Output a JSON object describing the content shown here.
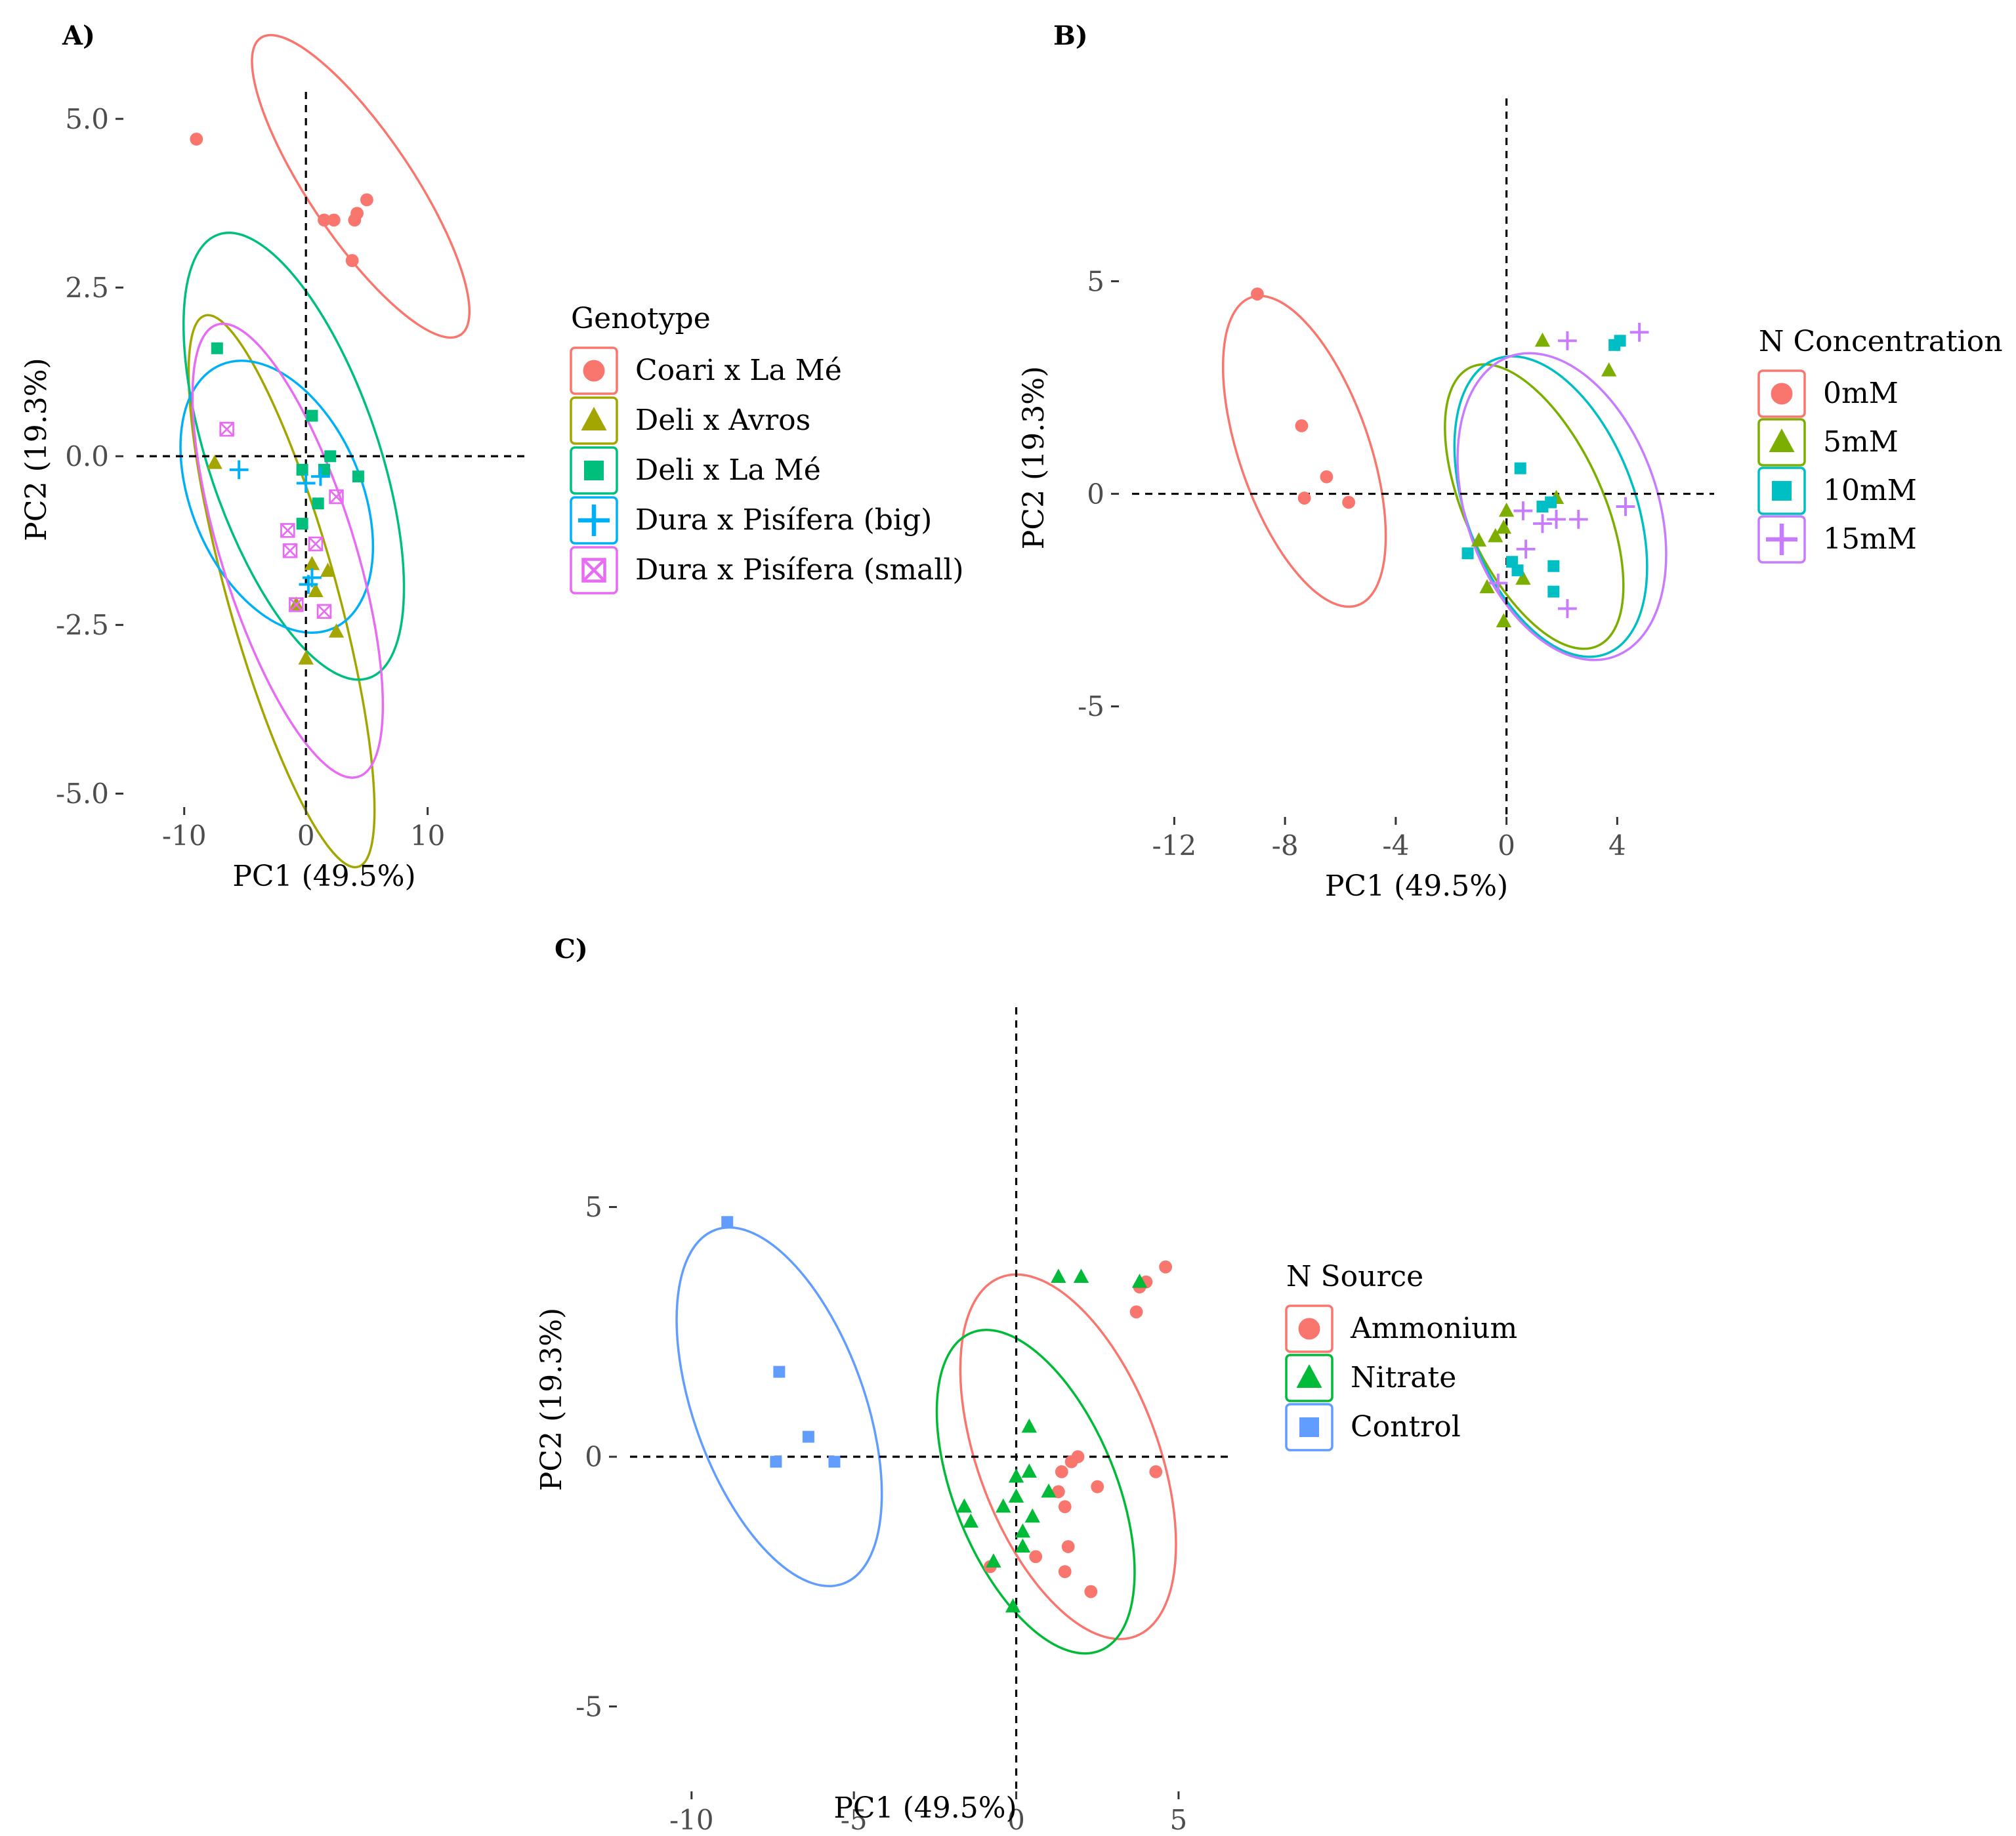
{
  "chart_data": [
    {
      "panel": "A)",
      "type": "scatter",
      "xlabel": "PC1 (49.5%)",
      "ylabel": "PC2 (19.3%)",
      "xlim": [
        -15,
        18
      ],
      "ylim": [
        -5.2,
        5.4
      ],
      "xticks": [
        -10,
        0,
        10
      ],
      "xtick_labels": [
        "-10",
        "0",
        "10"
      ],
      "yticks": [
        5,
        2.5,
        0,
        -2.5,
        -5
      ],
      "ytick_labels": [
        "5.0",
        "2.5",
        "0.0",
        "-2.5",
        "-5.0"
      ],
      "legend_title": "Genotype",
      "legend_position": "right",
      "series": [
        {
          "name": "Coari x La Mé",
          "shape": "circle",
          "color": "#F8766D",
          "points": [
            [
              -9,
              4.7
            ],
            [
              1.5,
              3.5
            ],
            [
              2.3,
              3.5
            ],
            [
              4,
              3.5
            ],
            [
              4.2,
              3.6
            ],
            [
              5,
              3.8
            ],
            [
              3.8,
              2.9
            ]
          ],
          "ellipse": {
            "cx": 4.5,
            "cy": 4.0,
            "rx": 17,
            "ry": 0.85,
            "angle": -15
          }
        },
        {
          "name": "Deli x Avros",
          "shape": "triangle",
          "color": "#A3A500",
          "points": [
            [
              -7.5,
              -0.1
            ],
            [
              -0.8,
              -2.2
            ],
            [
              0.5,
              -1.6
            ],
            [
              1.8,
              -1.7
            ],
            [
              0.8,
              -2.0
            ],
            [
              2.5,
              -2.6
            ],
            [
              0,
              -3.0
            ]
          ],
          "ellipse": {
            "cx": -2,
            "cy": -2,
            "rx": 15,
            "ry": 0.9,
            "angle": -33
          }
        },
        {
          "name": "Deli x La Mé",
          "shape": "square",
          "color": "#00BF7D",
          "points": [
            [
              -7.3,
              1.6
            ],
            [
              0.5,
              0.6
            ],
            [
              2,
              0
            ],
            [
              1.5,
              -0.2
            ],
            [
              4.3,
              -0.3
            ],
            [
              1,
              -0.7
            ],
            [
              -0.3,
              -1.0
            ],
            [
              -0.3,
              -0.2
            ]
          ],
          "ellipse": {
            "cx": -1,
            "cy": 0,
            "rx": 14,
            "ry": 1.4,
            "angle": -28
          }
        },
        {
          "name": "Dura x Pisífera (big)",
          "shape": "plus",
          "color": "#00B0F6",
          "points": [
            [
              -5.5,
              -0.2
            ],
            [
              0,
              -0.4
            ],
            [
              1.2,
              -0.3
            ],
            [
              0.5,
              -1.8
            ],
            [
              0.2,
              -1.9
            ]
          ],
          "ellipse": {
            "cx": -2.4,
            "cy": -0.6,
            "rx": 10,
            "ry": 1.4,
            "angle": -23
          }
        },
        {
          "name": "Dura x Pisífera (small)",
          "shape": "square-x",
          "color": "#E76BF3",
          "points": [
            [
              -6.5,
              0.4
            ],
            [
              -1.5,
              -1.1
            ],
            [
              -1.3,
              -1.4
            ],
            [
              0.8,
              -1.3
            ],
            [
              2.5,
              -0.6
            ],
            [
              1.5,
              -2.3
            ],
            [
              -0.8,
              -2.2
            ]
          ],
          "ellipse": {
            "cx": -1.5,
            "cy": -1.4,
            "rx": 13.4,
            "ry": 1.1,
            "angle": -30
          }
        }
      ]
    },
    {
      "panel": "B)",
      "type": "scatter",
      "xlabel": "PC1 (49.5%)",
      "ylabel": "PC2 (19.3%)",
      "xlim": [
        -14,
        7.5
      ],
      "ylim": [
        -7.6,
        9.3
      ],
      "xticks": [
        -12,
        -8,
        -4,
        0,
        4
      ],
      "xtick_labels": [
        "-12",
        "-8",
        "-4",
        "0",
        "4"
      ],
      "yticks": [
        5,
        0,
        -5
      ],
      "ytick_labels": [
        "5",
        "0",
        "-5"
      ],
      "legend_title": "N Concentration",
      "legend_position": "right",
      "series": [
        {
          "name": "0mM",
          "shape": "circle",
          "color": "#F8766D",
          "points": [
            [
              -9,
              4.7
            ],
            [
              -7.4,
              1.6
            ],
            [
              -7.3,
              -0.1
            ],
            [
              -6.5,
              0.4
            ],
            [
              -5.7,
              -0.2
            ]
          ],
          "ellipse": {
            "cx": -7.3,
            "cy": 1.0,
            "rx": 8.2,
            "ry": 1.7,
            "angle": -62
          }
        },
        {
          "name": "5mM",
          "shape": "triangle",
          "color": "#7CAE00",
          "points": [
            [
              1.3,
              3.6
            ],
            [
              3.7,
              2.9
            ],
            [
              -1,
              -1.1
            ],
            [
              -0.4,
              -1.0
            ],
            [
              -0.1,
              -0.8
            ],
            [
              0,
              -0.4
            ],
            [
              -0.7,
              -2.2
            ],
            [
              0.6,
              -2.0
            ],
            [
              -0.1,
              -3.0
            ],
            [
              1.8,
              -0.1
            ]
          ],
          "ellipse": {
            "cx": 1.0,
            "cy": -0.3,
            "rx": 8,
            "ry": 1.8,
            "angle": -55
          }
        },
        {
          "name": "10mM",
          "shape": "square",
          "color": "#00BFC4",
          "points": [
            [
              3.9,
              3.5
            ],
            [
              4.1,
              3.6
            ],
            [
              -1.4,
              -1.4
            ],
            [
              0.5,
              0.6
            ],
            [
              1.3,
              -0.3
            ],
            [
              1.6,
              -0.2
            ],
            [
              0.2,
              -1.6
            ],
            [
              0.4,
              -1.8
            ],
            [
              1.7,
              -1.7
            ],
            [
              1.7,
              -2.3
            ]
          ],
          "ellipse": {
            "cx": 1.6,
            "cy": -0.3,
            "rx": 8,
            "ry": 2.2,
            "angle": -60
          }
        },
        {
          "name": "15mM",
          "shape": "plus",
          "color": "#C77CFF",
          "points": [
            [
              2.2,
              3.6
            ],
            [
              4.8,
              3.8
            ],
            [
              0.6,
              -0.4
            ],
            [
              1.3,
              -0.7
            ],
            [
              1.8,
              -0.6
            ],
            [
              2.6,
              -0.6
            ],
            [
              4.3,
              -0.3
            ],
            [
              0.7,
              -1.3
            ],
            [
              -0.3,
              -2.1
            ],
            [
              2.2,
              -2.7
            ]
          ],
          "ellipse": {
            "cx": 2.0,
            "cy": -0.3,
            "rx": 8,
            "ry": 2.5,
            "angle": -62
          }
        }
      ]
    },
    {
      "panel": "C)",
      "type": "scatter",
      "xlabel": "PC1 (49.5%)",
      "ylabel": "PC2 (19.3%)",
      "xlim": [
        -12.3,
        6.7
      ],
      "ylim": [
        -6.7,
        9.0
      ],
      "xticks": [
        -10,
        -5,
        0,
        5
      ],
      "xtick_labels": [
        "-10",
        "-5",
        "0",
        "5"
      ],
      "yticks": [
        5,
        0,
        -5
      ],
      "ytick_labels": [
        "5",
        "0",
        "-5"
      ],
      "legend_title": "N Source",
      "legend_position": "right",
      "series": [
        {
          "name": "Ammonium",
          "shape": "circle",
          "color": "#F8766D",
          "points": [
            [
              4.6,
              3.8
            ],
            [
              4.0,
              3.5
            ],
            [
              3.8,
              3.4
            ],
            [
              3.7,
              2.9
            ],
            [
              1.4,
              -0.3
            ],
            [
              1.7,
              -0.1
            ],
            [
              2.5,
              -0.6
            ],
            [
              4.3,
              -0.3
            ],
            [
              1.3,
              -0.7
            ],
            [
              1.5,
              -1.0
            ],
            [
              0.6,
              -2.0
            ],
            [
              1.6,
              -1.8
            ],
            [
              -0.8,
              -2.2
            ],
            [
              2.3,
              -2.7
            ],
            [
              1.5,
              -2.3
            ],
            [
              1.9,
              0
            ]
          ],
          "ellipse": {
            "cx": 1.6,
            "cy": 0,
            "rx": 8.3,
            "ry": 2.0,
            "angle": -60
          }
        },
        {
          "name": "Nitrate",
          "shape": "triangle",
          "color": "#00BA38",
          "points": [
            [
              1.3,
              3.6
            ],
            [
              2.0,
              3.6
            ],
            [
              3.8,
              3.5
            ],
            [
              0.4,
              0.6
            ],
            [
              0,
              -0.4
            ],
            [
              0.4,
              -0.3
            ],
            [
              -0.4,
              -1.0
            ],
            [
              -1.6,
              -1.0
            ],
            [
              -1.4,
              -1.3
            ],
            [
              0,
              -0.8
            ],
            [
              0.5,
              -1.2
            ],
            [
              0.2,
              -1.5
            ],
            [
              0.2,
              -1.8
            ],
            [
              -0.7,
              -2.1
            ],
            [
              -0.1,
              -3.0
            ],
            [
              1.0,
              -0.7
            ]
          ],
          "ellipse": {
            "cx": 0.6,
            "cy": -0.7,
            "rx": 7.5,
            "ry": 1.8,
            "angle": -58
          }
        },
        {
          "name": "Control",
          "shape": "square",
          "color": "#619CFF",
          "points": [
            [
              -8.9,
              4.7
            ],
            [
              -7.3,
              1.7
            ],
            [
              -6.4,
              0.4
            ],
            [
              -7.4,
              -0.1
            ],
            [
              -5.6,
              -0.1
            ]
          ],
          "ellipse": {
            "cx": -7.3,
            "cy": 1.0,
            "rx": 8.1,
            "ry": 1.9,
            "angle": -61
          }
        }
      ]
    }
  ]
}
